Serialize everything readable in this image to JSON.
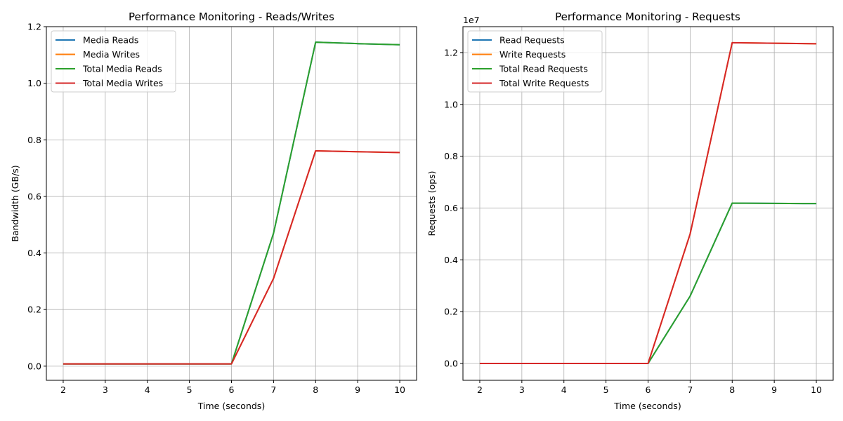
{
  "chart_data": [
    {
      "type": "line",
      "title": "Performance Monitoring - Reads/Writes",
      "xlabel": "Time (seconds)",
      "ylabel": "Bandwidth (GB/s)",
      "x": [
        2,
        3,
        4,
        5,
        6,
        7,
        8,
        9,
        10
      ],
      "xlim": [
        1.6,
        10.4
      ],
      "ylim": [
        -0.05,
        1.2
      ],
      "xticks": [
        "2",
        "3",
        "4",
        "5",
        "6",
        "7",
        "8",
        "9",
        "10"
      ],
      "yticks": [
        "0.0",
        "0.2",
        "0.4",
        "0.6",
        "0.8",
        "1.0",
        "1.2"
      ],
      "ytick_values": [
        0,
        0.2,
        0.4,
        0.6,
        0.8,
        1.0,
        1.2
      ],
      "scale_note": "",
      "grid": true,
      "legend_position": "upper-left",
      "series": [
        {
          "name": "Media Reads",
          "color": "#1f77b4",
          "values": [
            0.008,
            0.008,
            0.008,
            0.008,
            0.008,
            0.47,
            1.145,
            1.14,
            1.136
          ]
        },
        {
          "name": "Media Writes",
          "color": "#ff7f0e",
          "values": [
            0.008,
            0.008,
            0.008,
            0.008,
            0.008,
            0.31,
            0.761,
            0.758,
            0.755
          ]
        },
        {
          "name": "Total Media Reads",
          "color": "#2ca02c",
          "values": [
            0.008,
            0.008,
            0.008,
            0.008,
            0.008,
            0.47,
            1.145,
            1.14,
            1.136
          ]
        },
        {
          "name": "Total Media Writes",
          "color": "#d62728",
          "values": [
            0.008,
            0.008,
            0.008,
            0.008,
            0.008,
            0.31,
            0.761,
            0.758,
            0.755
          ]
        }
      ]
    },
    {
      "type": "line",
      "title": "Performance Monitoring - Requests",
      "xlabel": "Time (seconds)",
      "ylabel": "Requests (ops)",
      "x": [
        2,
        3,
        4,
        5,
        6,
        7,
        8,
        9,
        10
      ],
      "xlim": [
        1.6,
        10.4
      ],
      "ylim": [
        -650000,
        13000000
      ],
      "xticks": [
        "2",
        "3",
        "4",
        "5",
        "6",
        "7",
        "8",
        "9",
        "10"
      ],
      "yticks": [
        "0.0",
        "0.2",
        "0.4",
        "0.6",
        "0.8",
        "1.0",
        "1.2"
      ],
      "ytick_values": [
        0,
        2000000,
        4000000,
        6000000,
        8000000,
        10000000,
        12000000
      ],
      "scale_note": "1e7",
      "grid": true,
      "legend_position": "upper-left",
      "series": [
        {
          "name": "Read Requests",
          "color": "#1f77b4",
          "values": [
            0,
            0,
            0,
            0,
            0,
            2600000,
            6190000,
            6180000,
            6170000
          ]
        },
        {
          "name": "Write Requests",
          "color": "#ff7f0e",
          "values": [
            0,
            0,
            0,
            0,
            0,
            5000000,
            12380000,
            12360000,
            12340000
          ]
        },
        {
          "name": "Total Read Requests",
          "color": "#2ca02c",
          "values": [
            0,
            0,
            0,
            0,
            0,
            2600000,
            6190000,
            6180000,
            6170000
          ]
        },
        {
          "name": "Total Write Requests",
          "color": "#d62728",
          "values": [
            0,
            0,
            0,
            0,
            0,
            5000000,
            12380000,
            12360000,
            12340000
          ]
        }
      ]
    }
  ]
}
